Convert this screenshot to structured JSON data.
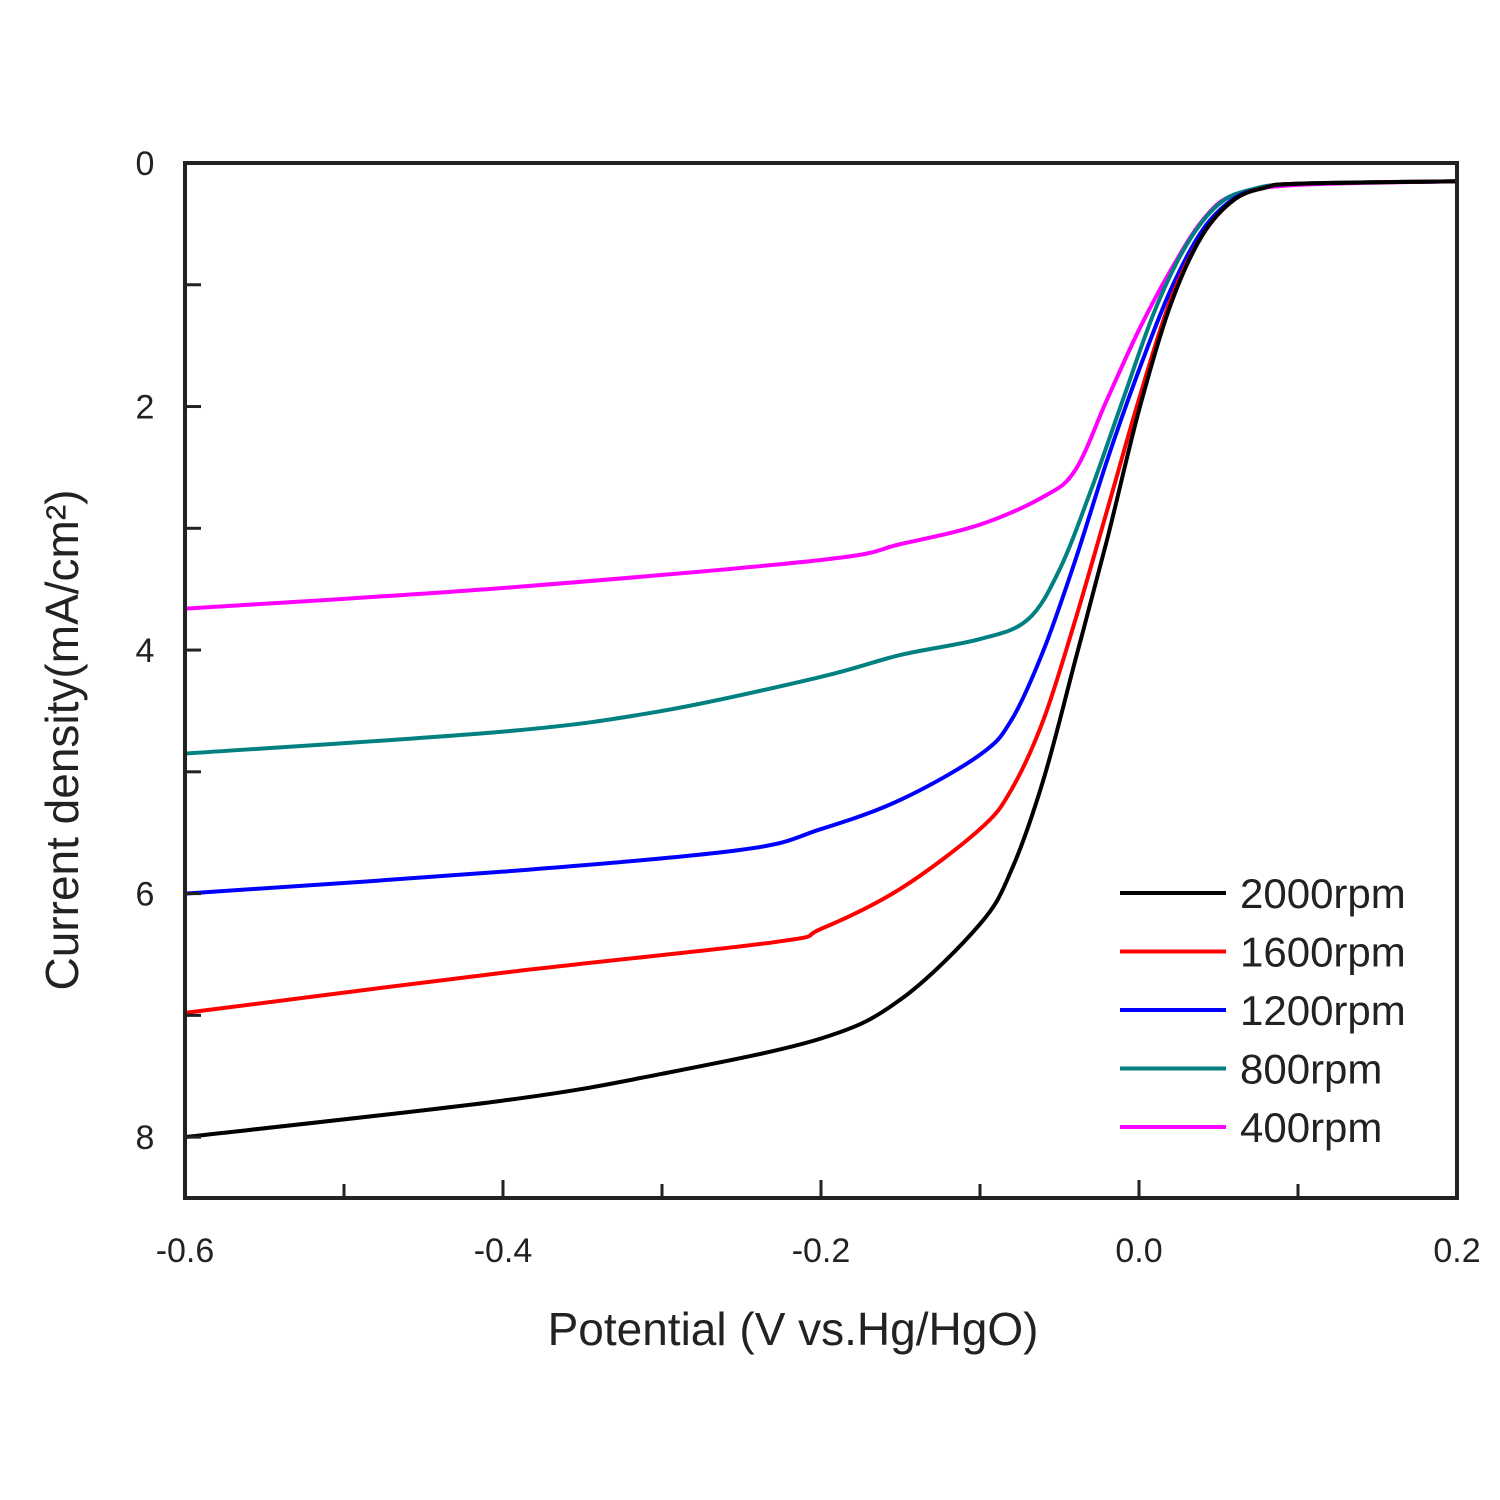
{
  "chart_data": {
    "type": "line",
    "title": "",
    "xlabel": "Potential (V vs.Hg/HgO)",
    "ylabel": "Current density(mA/cm²)",
    "xlim": [
      -0.6,
      0.2
    ],
    "ylim": [
      0,
      8.5
    ],
    "y_inverted": true,
    "x_ticks": [
      -0.6,
      -0.4,
      -0.2,
      0.0,
      0.2
    ],
    "x_tick_labels": [
      "-0.6",
      "-0.4",
      "-0.2",
      "0.0",
      "0.2"
    ],
    "y_ticks": [
      0,
      2,
      4,
      6,
      8
    ],
    "y_tick_labels": [
      "0",
      "2",
      "4",
      "6",
      "8"
    ],
    "grid": false,
    "legend_position": "bottom-right",
    "series": [
      {
        "name": "2000rpm",
        "color": "#000000",
        "x": [
          -0.6,
          -0.4,
          -0.3,
          -0.2,
          -0.15,
          -0.1,
          -0.08,
          -0.06,
          -0.04,
          -0.02,
          0.0,
          0.02,
          0.04,
          0.06,
          0.08,
          0.1,
          0.2
        ],
        "y": [
          8.0,
          7.7,
          7.48,
          7.19,
          6.87,
          6.25,
          5.8,
          5.06,
          4.08,
          3.09,
          2.03,
          1.16,
          0.59,
          0.3,
          0.2,
          0.17,
          0.15
        ]
      },
      {
        "name": "1600rpm",
        "color": "#ff0000",
        "x": [
          -0.6,
          -0.4,
          -0.23,
          -0.2,
          -0.15,
          -0.1,
          -0.08,
          -0.06,
          -0.04,
          -0.02,
          0.0,
          0.02,
          0.04,
          0.06,
          0.08,
          0.1,
          0.2
        ],
        "y": [
          6.98,
          6.65,
          6.4,
          6.29,
          5.96,
          5.47,
          5.14,
          4.57,
          3.75,
          2.85,
          1.94,
          1.12,
          0.59,
          0.3,
          0.2,
          0.17,
          0.15
        ]
      },
      {
        "name": "1200rpm",
        "color": "#0000ff",
        "x": [
          -0.6,
          -0.4,
          -0.25,
          -0.2,
          -0.15,
          -0.1,
          -0.08,
          -0.06,
          -0.04,
          -0.02,
          0.0,
          0.02,
          0.04,
          0.06,
          0.08,
          0.1,
          0.2
        ],
        "y": [
          6.0,
          5.82,
          5.64,
          5.47,
          5.23,
          4.86,
          4.57,
          4.0,
          3.26,
          2.44,
          1.7,
          1.04,
          0.55,
          0.29,
          0.2,
          0.17,
          0.15
        ]
      },
      {
        "name": "800rpm",
        "color": "#008080",
        "x": [
          -0.6,
          -0.4,
          -0.3,
          -0.2,
          -0.15,
          -0.1,
          -0.07,
          -0.05,
          -0.03,
          -0.01,
          0.01,
          0.03,
          0.05,
          0.07,
          0.1,
          0.2
        ],
        "y": [
          4.85,
          4.67,
          4.5,
          4.22,
          4.04,
          3.91,
          3.75,
          3.34,
          2.68,
          1.94,
          1.21,
          0.67,
          0.34,
          0.22,
          0.17,
          0.15
        ]
      },
      {
        "name": "400rpm",
        "color": "#ff00ff",
        "x": [
          -0.6,
          -0.4,
          -0.2,
          -0.15,
          -0.1,
          -0.06,
          -0.04,
          -0.02,
          0.0,
          0.02,
          0.04,
          0.06,
          0.1,
          0.2
        ],
        "y": [
          3.66,
          3.49,
          3.26,
          3.13,
          2.97,
          2.74,
          2.52,
          1.94,
          1.37,
          0.88,
          0.47,
          0.26,
          0.18,
          0.15
        ]
      }
    ]
  }
}
